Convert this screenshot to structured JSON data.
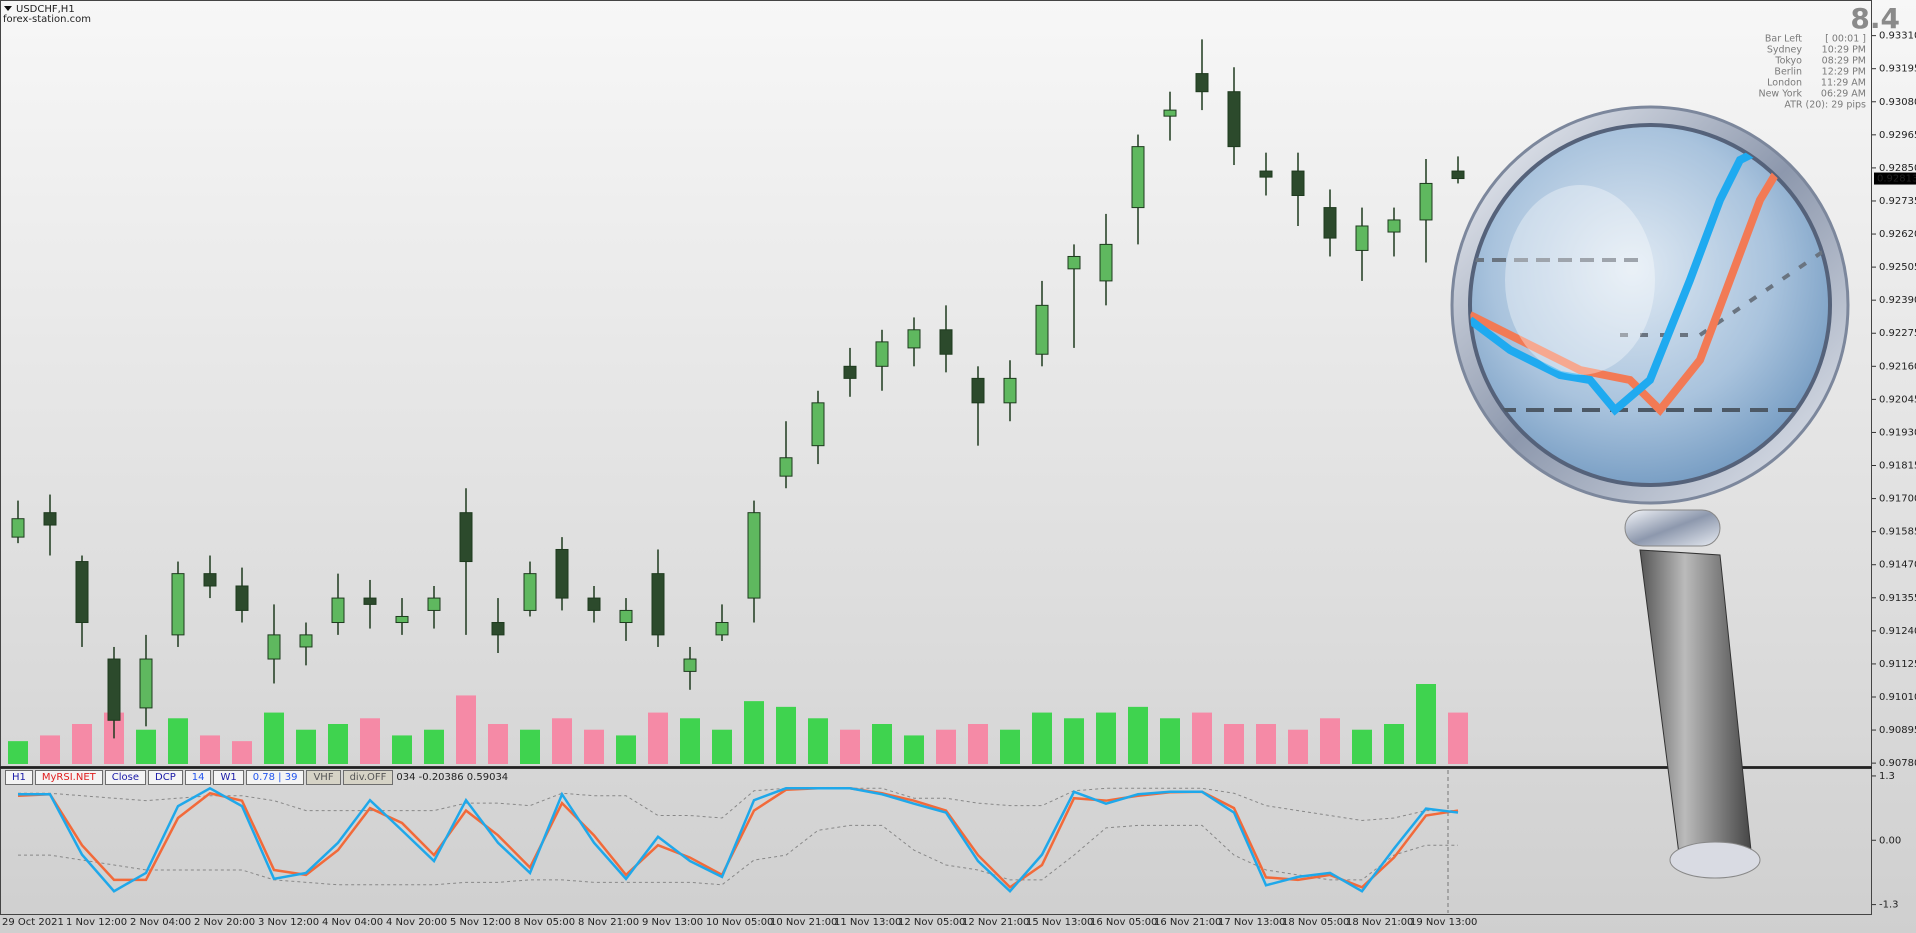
{
  "header": {
    "symbol": "USDCHF,H1",
    "source": "forex-station.com"
  },
  "info_panel": {
    "value": "8.4",
    "rows": [
      [
        "Bar Left",
        "[ 00:01 ]"
      ],
      [
        "Sydney",
        "10:29 PM"
      ],
      [
        "Tokyo",
        "08:29 PM"
      ],
      [
        "Berlin",
        "12:29 PM"
      ],
      [
        "London",
        "11:29 AM"
      ],
      [
        "New York",
        "06:29 AM"
      ]
    ],
    "atr": "ATR (20): 29 pips"
  },
  "toolbar": {
    "buttons": [
      "H1",
      "MyRSI.NET",
      "Close",
      "DCP",
      "14",
      "W1",
      "0.78 | 39",
      "VHF",
      "div.OFF"
    ],
    "readout": "034 -0.20386 0.59034"
  },
  "chart_data": [
    {
      "type": "candlestick",
      "categories": [
        "29 Oct 2021",
        null,
        "1 Nov 12:00",
        null,
        "2 Nov 04:00",
        null,
        "2 Nov 20:00",
        null,
        "3 Nov 12:00",
        null,
        "4 Nov 04:00",
        null,
        "4 Nov 20:00",
        null,
        "5 Nov 12:00",
        null,
        "8 Nov 05:00",
        null,
        "8 Nov 21:00",
        null,
        "9 Nov 13:00",
        null,
        "10 Nov 05:00",
        null,
        "10 Nov 21:00",
        null,
        "11 Nov 13:00",
        null,
        "12 Nov 05:00",
        null,
        "12 Nov 21:00",
        null,
        "15 Nov 13:00",
        null,
        "16 Nov 05:00",
        null,
        "16 Nov 21:00",
        null,
        "17 Nov 13:00",
        null,
        "18 Nov 05:00",
        null,
        "18 Nov 21:00",
        null,
        "19 Nov 13:00",
        null
      ],
      "open": [
        0.91566,
        0.91651,
        0.91481,
        0.91142,
        0.90972,
        0.91226,
        0.91439,
        0.91396,
        0.91142,
        0.91184,
        0.91269,
        0.91354,
        0.91269,
        0.91311,
        0.91651,
        0.91269,
        0.91311,
        0.91523,
        0.91354,
        0.91269,
        0.91439,
        0.91099,
        0.91226,
        0.91354,
        0.91778,
        0.91884,
        0.9216,
        0.9216,
        0.92224,
        0.92287,
        0.92118,
        0.92033,
        0.92202,
        0.92499,
        0.92457,
        0.92712,
        0.9303,
        0.93178,
        0.93115,
        0.92839,
        0.92839,
        0.92712,
        0.92563,
        0.92627,
        0.92669,
        0.92839
      ],
      "high": [
        0.91693,
        0.91714,
        0.91502,
        0.91184,
        0.91226,
        0.91481,
        0.91502,
        0.9146,
        0.91332,
        0.91269,
        0.91439,
        0.91417,
        0.91354,
        0.91396,
        0.91736,
        0.91354,
        0.91481,
        0.91566,
        0.91396,
        0.91354,
        0.91523,
        0.91184,
        0.91332,
        0.91693,
        0.91969,
        0.92075,
        0.92224,
        0.92287,
        0.9233,
        0.92372,
        0.9216,
        0.92181,
        0.92457,
        0.92584,
        0.9269,
        0.92966,
        0.93115,
        0.93297,
        0.932,
        0.92903,
        0.92903,
        0.92775,
        0.92712,
        0.92712,
        0.92881,
        0.9289
      ],
      "low": [
        0.91545,
        0.91502,
        0.91184,
        0.90866,
        0.90908,
        0.91184,
        0.91354,
        0.91269,
        0.91057,
        0.9112,
        0.91226,
        0.91248,
        0.91226,
        0.91248,
        0.91226,
        0.91163,
        0.9129,
        0.91311,
        0.91269,
        0.91205,
        0.91184,
        0.91035,
        0.91205,
        0.91269,
        0.91736,
        0.9182,
        0.92054,
        0.92075,
        0.9216,
        0.92139,
        0.91884,
        0.91969,
        0.9216,
        0.92224,
        0.92372,
        0.92584,
        0.92945,
        0.93051,
        0.9286,
        0.92754,
        0.92648,
        0.92542,
        0.92457,
        0.92542,
        0.92521,
        0.92796
      ],
      "close": [
        0.9163,
        0.91608,
        0.91269,
        0.90929,
        0.91142,
        0.91439,
        0.91396,
        0.91311,
        0.91226,
        0.91226,
        0.91354,
        0.91332,
        0.9129,
        0.91354,
        0.91481,
        0.91226,
        0.91439,
        0.91354,
        0.91311,
        0.91311,
        0.91226,
        0.91142,
        0.91269,
        0.91651,
        0.91842,
        0.92033,
        0.92118,
        0.92245,
        0.92287,
        0.92202,
        0.92033,
        0.92118,
        0.92372,
        0.92542,
        0.92584,
        0.92924,
        0.93051,
        0.93115,
        0.92924,
        0.92818,
        0.92754,
        0.92606,
        0.92648,
        0.92669,
        0.92796,
        0.92813
      ],
      "volume": [
        20,
        25,
        35,
        45,
        30,
        40,
        25,
        20,
        45,
        30,
        35,
        40,
        25,
        30,
        60,
        35,
        30,
        40,
        30,
        25,
        45,
        40,
        30,
        55,
        50,
        40,
        30,
        35,
        25,
        30,
        35,
        30,
        45,
        40,
        45,
        50,
        40,
        45,
        35,
        35,
        30,
        40,
        30,
        35,
        70,
        45
      ],
      "up_color": "#5fb85f",
      "down_color": "#2c4a2c",
      "wick_color": "#1e3a1e",
      "volume_up_color": "#3fd34f",
      "volume_down_color": "#f58aa6",
      "last_price": 0.92813,
      "ylim": [
        0.9077,
        0.9342
      ],
      "yticks": [
        {
          "value": 0.9331,
          "label": "0.93310"
        },
        {
          "value": 0.93195,
          "label": "0.93195"
        },
        {
          "value": 0.9308,
          "label": "0.93080"
        },
        {
          "value": 0.92965,
          "label": "0.92965"
        },
        {
          "value": 0.9285,
          "label": "0.92850"
        },
        {
          "value": 0.92735,
          "label": "0.92735"
        },
        {
          "value": 0.9262,
          "label": "0.92620"
        },
        {
          "value": 0.92505,
          "label": "0.92505"
        },
        {
          "value": 0.9239,
          "label": "0.92390"
        },
        {
          "value": 0.92275,
          "label": "0.92275"
        },
        {
          "value": 0.9216,
          "label": "0.92160"
        },
        {
          "value": 0.92045,
          "label": "0.92045"
        },
        {
          "value": 0.9193,
          "label": "0.91930"
        },
        {
          "value": 0.91815,
          "label": "0.91815"
        },
        {
          "value": 0.917,
          "label": "0.91700"
        },
        {
          "value": 0.91585,
          "label": "0.91585"
        },
        {
          "value": 0.9147,
          "label": "0.91470"
        },
        {
          "value": 0.91355,
          "label": "0.91355"
        },
        {
          "value": 0.9124,
          "label": "0.91240"
        },
        {
          "value": 0.91125,
          "label": "0.91125"
        },
        {
          "value": 0.9101,
          "label": "0.91010"
        },
        {
          "value": 0.90895,
          "label": "0.90895"
        },
        {
          "value": 0.9078,
          "label": "0.90780"
        }
      ]
    },
    {
      "type": "line",
      "series": [
        {
          "color": "#888888",
          "style": "dashed",
          "values": [
            0.95,
            0.95,
            0.9,
            0.85,
            0.8,
            0.85,
            0.9,
            0.9,
            0.8,
            0.6,
            0.6,
            0.6,
            0.6,
            0.6,
            0.75,
            0.75,
            0.7,
            0.95,
            0.9,
            0.9,
            0.5,
            0.5,
            0.45,
            1.0,
            1.05,
            1.05,
            1.05,
            1.05,
            0.85,
            0.85,
            0.75,
            0.7,
            0.7,
            1.0,
            1.05,
            1.05,
            1.05,
            1.05,
            0.95,
            0.7,
            0.6,
            0.5,
            0.4,
            0.45,
            0.6,
            0.6
          ]
        },
        {
          "color": "#888888",
          "style": "dashed",
          "values": [
            -0.3,
            -0.3,
            -0.4,
            -0.5,
            -0.6,
            -0.6,
            -0.6,
            -0.6,
            -0.8,
            -0.85,
            -0.9,
            -0.9,
            -0.9,
            -0.9,
            -0.85,
            -0.85,
            -0.8,
            -0.8,
            -0.85,
            -0.85,
            -0.85,
            -0.85,
            -0.9,
            -0.4,
            -0.3,
            0.2,
            0.3,
            0.3,
            -0.2,
            -0.5,
            -0.6,
            -0.8,
            -0.8,
            -0.3,
            0.25,
            0.3,
            0.3,
            0.3,
            -0.3,
            -0.6,
            -0.7,
            -0.8,
            -0.8,
            -0.3,
            -0.1,
            -0.1
          ]
        },
        {
          "color": "#f26a3a",
          "style": "solid",
          "values": [
            0.9,
            0.93,
            -0.1,
            -0.8,
            -0.8,
            0.45,
            0.95,
            0.8,
            -0.6,
            -0.7,
            -0.2,
            0.65,
            0.35,
            -0.3,
            0.6,
            0.1,
            -0.55,
            0.75,
            0.1,
            -0.7,
            -0.1,
            -0.35,
            -0.7,
            0.6,
            1.02,
            1.05,
            1.05,
            0.95,
            0.8,
            0.6,
            -0.3,
            -0.95,
            -0.5,
            0.85,
            0.8,
            0.9,
            0.97,
            0.98,
            0.65,
            -0.75,
            -0.8,
            -0.7,
            -0.95,
            -0.35,
            0.5,
            0.6
          ]
        },
        {
          "color": "#1fa8ea",
          "style": "solid",
          "values": [
            0.93,
            0.93,
            -0.29,
            -1.03,
            -0.66,
            0.69,
            1.05,
            0.69,
            -0.78,
            -0.66,
            -0.05,
            0.81,
            0.2,
            -0.42,
            0.81,
            -0.05,
            -0.66,
            0.93,
            -0.05,
            -0.78,
            0.07,
            -0.42,
            -0.74,
            0.81,
            1.05,
            1.05,
            1.05,
            0.93,
            0.74,
            0.56,
            -0.42,
            -1.03,
            -0.29,
            0.98,
            0.74,
            0.93,
            0.98,
            0.98,
            0.56,
            -0.91,
            -0.74,
            -0.66,
            -1.03,
            -0.17,
            0.64,
            0.56
          ]
        }
      ],
      "ylim": [
        -1.47,
        1.42
      ],
      "yticks": [
        1.3,
        {
          "value": 0,
          "label": "0.00"
        },
        -1.3
      ]
    }
  ]
}
